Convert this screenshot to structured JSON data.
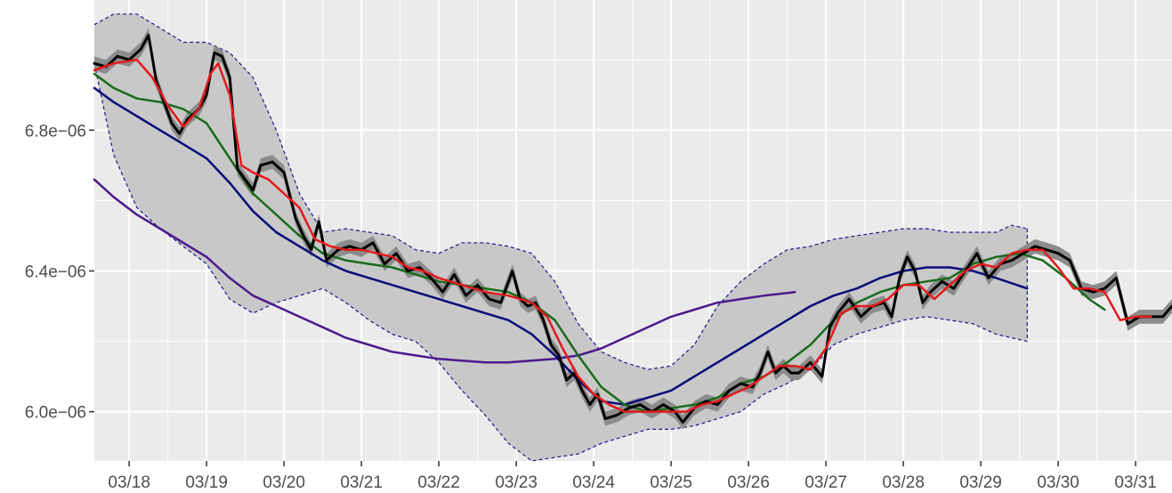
{
  "chart_data": {
    "type": "line",
    "title": "",
    "xlabel": "",
    "ylabel": "",
    "x_ticks": [
      "03/18",
      "03/19",
      "03/20",
      "03/21",
      "03/22",
      "03/23",
      "03/24",
      "03/25",
      "03/26",
      "03/27",
      "03/28",
      "03/29",
      "03/30",
      "03/31"
    ],
    "y_ticks": [
      {
        "value": 6e-06,
        "label": "6.0e−06"
      },
      {
        "value": 6.4e-06,
        "label": "6.4e−06"
      },
      {
        "value": 6.8e-06,
        "label": "6.8e−06"
      }
    ],
    "xlim": [
      "03/17.55",
      "03/31.47"
    ],
    "ylim": [
      5.86e-06,
      7.17e-06
    ],
    "grid": true,
    "legend": "none",
    "colors": {
      "panel": "#ebebeb",
      "grid": "#ffffff",
      "band_fill": "#c8c8c8",
      "band_edge": "#1a1a8c",
      "price": "#000000",
      "price_band": "#8c8c8c",
      "red": "#e41a1c",
      "green": "#1a6b1a",
      "navy": "#0b0b7a",
      "purple": "#4b1a8c"
    },
    "series": [
      {
        "x": [
          17.55,
          17.7,
          17.85,
          18.0,
          18.15,
          18.25,
          18.35,
          18.45,
          18.55,
          18.65,
          18.75,
          18.9,
          19.0,
          19.1,
          19.2,
          19.3,
          19.4,
          19.5,
          19.6,
          19.7,
          19.85,
          20.0,
          20.15,
          20.25,
          20.35,
          20.45,
          20.55,
          20.7,
          20.85,
          21.0,
          21.15,
          21.3,
          21.45,
          21.6,
          21.75,
          21.9,
          22.05,
          22.2,
          22.35,
          22.5,
          22.65,
          22.8,
          22.95,
          23.05,
          23.15,
          23.25,
          23.35,
          23.45,
          23.55,
          23.65,
          23.75,
          23.85,
          23.95,
          24.05,
          24.15,
          24.3,
          24.45,
          24.6,
          24.75,
          24.9,
          25.05,
          25.15,
          25.3,
          25.45,
          25.6,
          25.75,
          25.9,
          26.05,
          26.15,
          26.25,
          26.35,
          26.45,
          26.55,
          26.65,
          26.8,
          26.95,
          27.05,
          27.15,
          27.3,
          27.45,
          27.6,
          27.75,
          27.85,
          27.95,
          28.05,
          28.15,
          28.25,
          28.35,
          28.5,
          28.65,
          28.8,
          28.95,
          29.1,
          29.25,
          29.4,
          29.55,
          29.7,
          29.85,
          30.0,
          30.15,
          30.3,
          30.45,
          30.6,
          30.75,
          30.9,
          31.05,
          31.2,
          31.35,
          31.47
        ],
        "values": [
          6.99e-06,
          6.98e-06,
          7.01e-06,
          7e-06,
          7.03e-06,
          7.07e-06,
          6.94e-06,
          6.88e-06,
          6.82e-06,
          6.79e-06,
          6.83e-06,
          6.86e-06,
          6.9e-06,
          7.02e-06,
          7.01e-06,
          6.95e-06,
          6.69e-06,
          6.66e-06,
          6.63e-06,
          6.7e-06,
          6.71e-06,
          6.68e-06,
          6.55e-06,
          6.5e-06,
          6.46e-06,
          6.54e-06,
          6.43e-06,
          6.46e-06,
          6.47e-06,
          6.46e-06,
          6.48e-06,
          6.42e-06,
          6.45e-06,
          6.4e-06,
          6.41e-06,
          6.38e-06,
          6.34e-06,
          6.39e-06,
          6.33e-06,
          6.36e-06,
          6.32e-06,
          6.31e-06,
          6.4e-06,
          6.32e-06,
          6.3e-06,
          6.31e-06,
          6.26e-06,
          6.19e-06,
          6.16e-06,
          6.09e-06,
          6.11e-06,
          6.06e-06,
          6.02e-06,
          6.05e-06,
          5.98e-06,
          5.99e-06,
          6.01e-06,
          6.02e-06,
          6e-06,
          6.02e-06,
          6e-06,
          5.97e-06,
          6.01e-06,
          6.03e-06,
          6.02e-06,
          6.06e-06,
          6.08e-06,
          6.07e-06,
          6.11e-06,
          6.17e-06,
          6.11e-06,
          6.13e-06,
          6.11e-06,
          6.11e-06,
          6.14e-06,
          6.1e-06,
          6.24e-06,
          6.28e-06,
          6.32e-06,
          6.27e-06,
          6.3e-06,
          6.31e-06,
          6.27e-06,
          6.38e-06,
          6.44e-06,
          6.4e-06,
          6.31e-06,
          6.34e-06,
          6.37e-06,
          6.35e-06,
          6.4e-06,
          6.45e-06,
          6.38e-06,
          6.42e-06,
          6.43e-06,
          6.45e-06,
          6.47e-06,
          6.46e-06,
          6.45e-06,
          6.43e-06,
          6.35e-06,
          6.34e-06,
          6.35e-06,
          6.38e-06,
          6.25e-06,
          6.27e-06,
          6.27e-06,
          6.27e-06,
          6.3e-06
        ]
      },
      {
        "x": [
          17.55,
          17.8,
          18.1,
          18.3,
          18.5,
          18.7,
          18.9,
          19.05,
          19.15,
          19.3,
          19.45,
          19.6,
          19.8,
          20.0,
          20.2,
          20.4,
          20.6,
          20.8,
          21.0,
          21.2,
          21.4,
          21.6,
          21.8,
          22.0,
          22.3,
          22.6,
          22.9,
          23.2,
          23.4,
          23.6,
          23.8,
          24.0,
          24.2,
          24.4,
          24.6,
          24.8,
          25.0,
          25.2,
          25.4,
          25.6,
          25.8,
          26.0,
          26.2,
          26.4,
          26.6,
          26.8,
          27.0,
          27.2,
          27.4,
          27.6,
          27.8,
          28.0,
          28.2,
          28.4,
          28.6,
          28.8,
          29.0,
          29.2,
          29.4,
          29.6,
          29.8,
          30.0,
          30.2,
          30.4,
          30.6,
          30.8,
          31.0,
          31.2
        ],
        "values": [
          6.97e-06,
          6.99e-06,
          7e-06,
          6.95e-06,
          6.87e-06,
          6.81e-06,
          6.86e-06,
          6.96e-06,
          6.99e-06,
          6.9e-06,
          6.7e-06,
          6.68e-06,
          6.66e-06,
          6.62e-06,
          6.58e-06,
          6.49e-06,
          6.47e-06,
          6.46e-06,
          6.46e-06,
          6.45e-06,
          6.44e-06,
          6.41e-06,
          6.4e-06,
          6.38e-06,
          6.36e-06,
          6.34e-06,
          6.33e-06,
          6.31e-06,
          6.27e-06,
          6.18e-06,
          6.1e-06,
          6.05e-06,
          6.02e-06,
          6e-06,
          6e-06,
          6e-06,
          6e-06,
          6e-06,
          6.02e-06,
          6.03e-06,
          6.05e-06,
          6.07e-06,
          6.1e-06,
          6.13e-06,
          6.13e-06,
          6.12e-06,
          6.18e-06,
          6.28e-06,
          6.3e-06,
          6.3e-06,
          6.32e-06,
          6.36e-06,
          6.36e-06,
          6.32e-06,
          6.36e-06,
          6.4e-06,
          6.42e-06,
          6.41e-06,
          6.45e-06,
          6.46e-06,
          6.46e-06,
          6.41e-06,
          6.35e-06,
          6.35e-06,
          6.34e-06,
          6.26e-06,
          6.27e-06,
          6.27e-06
        ]
      },
      {
        "x": [
          17.55,
          17.8,
          18.1,
          18.4,
          18.7,
          19.0,
          19.3,
          19.6,
          19.9,
          20.2,
          20.5,
          20.8,
          21.1,
          21.4,
          21.7,
          22.0,
          22.3,
          22.6,
          22.9,
          23.2,
          23.5,
          23.8,
          24.1,
          24.4,
          24.7,
          25.0,
          25.3,
          25.6,
          25.9,
          26.2,
          26.5,
          26.8,
          27.1,
          27.4,
          27.7,
          28.0,
          28.3,
          28.6,
          28.9,
          29.2,
          29.5,
          29.8,
          30.1,
          30.4,
          30.6
        ],
        "values": [
          6.96e-06,
          6.92e-06,
          6.89e-06,
          6.88e-06,
          6.86e-06,
          6.82e-06,
          6.72e-06,
          6.62e-06,
          6.56e-06,
          6.5e-06,
          6.45e-06,
          6.43e-06,
          6.42e-06,
          6.41e-06,
          6.39e-06,
          6.37e-06,
          6.36e-06,
          6.35e-06,
          6.34e-06,
          6.31e-06,
          6.26e-06,
          6.16e-06,
          6.07e-06,
          6.02e-06,
          6e-06,
          6.01e-06,
          6.02e-06,
          6.04e-06,
          6.08e-06,
          6.1e-06,
          6.14e-06,
          6.19e-06,
          6.26e-06,
          6.31e-06,
          6.34e-06,
          6.36e-06,
          6.37e-06,
          6.38e-06,
          6.42e-06,
          6.44e-06,
          6.45e-06,
          6.43e-06,
          6.38e-06,
          6.32e-06,
          6.29e-06
        ]
      },
      {
        "x": [
          17.55,
          17.8,
          18.1,
          18.4,
          18.7,
          19.0,
          19.3,
          19.6,
          19.9,
          20.2,
          20.5,
          20.8,
          21.1,
          21.4,
          21.7,
          22.0,
          22.3,
          22.6,
          22.9,
          23.2,
          23.5,
          23.8,
          24.1,
          24.4,
          24.7,
          25.0,
          25.3,
          25.6,
          25.9,
          26.2,
          26.5,
          26.8,
          27.1,
          27.4,
          27.7,
          28.0,
          28.3,
          28.6,
          28.9,
          29.2,
          29.6
        ],
        "values": [
          6.92e-06,
          6.88e-06,
          6.84e-06,
          6.8e-06,
          6.76e-06,
          6.72e-06,
          6.65e-06,
          6.57e-06,
          6.51e-06,
          6.47e-06,
          6.43e-06,
          6.4e-06,
          6.38e-06,
          6.36e-06,
          6.34e-06,
          6.32e-06,
          6.3e-06,
          6.28e-06,
          6.26e-06,
          6.22e-06,
          6.16e-06,
          6.09e-06,
          6.03e-06,
          6.02e-06,
          6.04e-06,
          6.06e-06,
          6.1e-06,
          6.14e-06,
          6.18e-06,
          6.22e-06,
          6.26e-06,
          6.3e-06,
          6.33e-06,
          6.35e-06,
          6.38e-06,
          6.4e-06,
          6.41e-06,
          6.41e-06,
          6.4e-06,
          6.38e-06,
          6.35e-06
        ]
      },
      {
        "x": [
          17.55,
          17.8,
          18.1,
          18.4,
          18.7,
          19.0,
          19.3,
          19.6,
          19.9,
          20.2,
          20.5,
          20.8,
          21.1,
          21.4,
          21.7,
          22.0,
          22.3,
          22.6,
          22.9,
          23.2,
          23.5,
          23.8,
          24.1,
          24.4,
          24.7,
          25.0,
          25.3,
          25.6,
          25.9,
          26.2,
          26.6
        ],
        "values": [
          6.66e-06,
          6.61e-06,
          6.56e-06,
          6.52e-06,
          6.48e-06,
          6.44e-06,
          6.38e-06,
          6.33e-06,
          6.3e-06,
          6.27e-06,
          6.24e-06,
          6.21e-06,
          6.19e-06,
          6.17e-06,
          6.16e-06,
          6.15e-06,
          6.145e-06,
          6.14e-06,
          6.14e-06,
          6.145e-06,
          6.15e-06,
          6.16e-06,
          6.18e-06,
          6.21e-06,
          6.24e-06,
          6.27e-06,
          6.29e-06,
          6.31e-06,
          6.32e-06,
          6.33e-06,
          6.34e-06
        ]
      }
    ],
    "band": {
      "x": [
        17.55,
        17.8,
        18.1,
        18.4,
        18.7,
        19.0,
        19.3,
        19.6,
        19.9,
        20.2,
        20.5,
        20.8,
        21.1,
        21.4,
        21.7,
        22.0,
        22.3,
        22.6,
        22.9,
        23.2,
        23.5,
        23.8,
        24.1,
        24.4,
        24.7,
        25.0,
        25.3,
        25.6,
        25.9,
        26.2,
        26.5,
        26.8,
        27.1,
        27.4,
        27.7,
        28.0,
        28.3,
        28.6,
        28.9,
        29.2,
        29.4,
        29.6
      ],
      "upper": [
        7.1e-06,
        7.13e-06,
        7.13e-06,
        7.09e-06,
        7.05e-06,
        7.05e-06,
        7.02e-06,
        6.95e-06,
        6.8e-06,
        6.62e-06,
        6.51e-06,
        6.52e-06,
        6.51e-06,
        6.5e-06,
        6.46e-06,
        6.45e-06,
        6.48e-06,
        6.48e-06,
        6.47e-06,
        6.45e-06,
        6.37e-06,
        6.25e-06,
        6.17e-06,
        6.14e-06,
        6.12e-06,
        6.13e-06,
        6.19e-06,
        6.3e-06,
        6.37e-06,
        6.42e-06,
        6.46e-06,
        6.47e-06,
        6.49e-06,
        6.5e-06,
        6.51e-06,
        6.52e-06,
        6.52e-06,
        6.51e-06,
        6.51e-06,
        6.51e-06,
        6.53e-06,
        6.52e-06
      ],
      "lower": [
        6.99e-06,
        6.73e-06,
        6.58e-06,
        6.52e-06,
        6.47e-06,
        6.42e-06,
        6.32e-06,
        6.28e-06,
        6.31e-06,
        6.33e-06,
        6.35e-06,
        6.31e-06,
        6.26e-06,
        6.22e-06,
        6.2e-06,
        6.14e-06,
        6.06e-06,
        5.99e-06,
        5.91e-06,
        5.86e-06,
        5.87e-06,
        5.88e-06,
        5.91e-06,
        5.93e-06,
        5.95e-06,
        5.95e-06,
        5.96e-06,
        5.98e-06,
        6e-06,
        6.05e-06,
        6.08e-06,
        6.12e-06,
        6.19e-06,
        6.22e-06,
        6.24e-06,
        6.26e-06,
        6.27e-06,
        6.26e-06,
        6.25e-06,
        6.22e-06,
        6.21e-06,
        6.2e-06
      ]
    },
    "price_band_width": 2e-08
  }
}
